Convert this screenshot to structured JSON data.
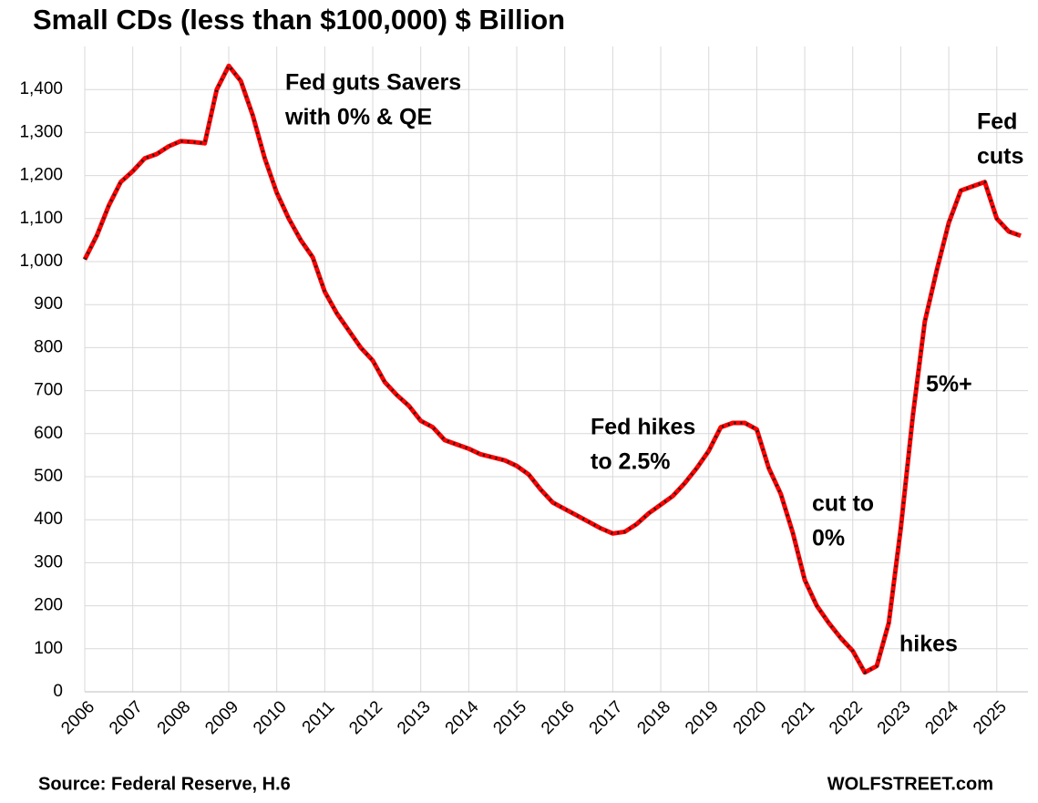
{
  "chart_data": {
    "type": "line",
    "title": "Small CDs (less than $100,000) $ Billion",
    "source": "Source: Federal Reserve, H.6",
    "credit": "WOLFSTREET.com",
    "x": [
      2006,
      2006.25,
      2006.5,
      2006.75,
      2007,
      2007.25,
      2007.5,
      2007.75,
      2008,
      2008.25,
      2008.5,
      2008.75,
      2009,
      2009.25,
      2009.5,
      2009.75,
      2010,
      2010.25,
      2010.5,
      2010.75,
      2011,
      2011.25,
      2011.5,
      2011.75,
      2012,
      2012.25,
      2012.5,
      2012.75,
      2013,
      2013.25,
      2013.5,
      2013.75,
      2014,
      2014.25,
      2014.5,
      2014.75,
      2015,
      2015.25,
      2015.5,
      2015.75,
      2016,
      2016.25,
      2016.5,
      2016.75,
      2017,
      2017.25,
      2017.5,
      2017.75,
      2018,
      2018.25,
      2018.5,
      2018.75,
      2019,
      2019.25,
      2019.5,
      2019.75,
      2020,
      2020.25,
      2020.5,
      2020.75,
      2021,
      2021.25,
      2021.5,
      2021.75,
      2022,
      2022.25,
      2022.5,
      2022.75,
      2023,
      2023.25,
      2023.5,
      2023.75,
      2024,
      2024.25,
      2024.5,
      2024.75,
      2025,
      2025.25,
      2025.5
    ],
    "series": [
      {
        "name": "Small CDs",
        "color": "#ff0000",
        "values": [
          1005,
          1060,
          1130,
          1185,
          1210,
          1240,
          1250,
          1268,
          1280,
          1278,
          1275,
          1400,
          1455,
          1420,
          1340,
          1240,
          1160,
          1100,
          1050,
          1010,
          930,
          880,
          840,
          800,
          770,
          720,
          690,
          665,
          630,
          615,
          585,
          575,
          565,
          552,
          545,
          538,
          525,
          505,
          470,
          440,
          425,
          410,
          395,
          380,
          368,
          372,
          390,
          415,
          435,
          455,
          485,
          520,
          560,
          615,
          625,
          625,
          610,
          520,
          460,
          370,
          260,
          200,
          160,
          125,
          95,
          45,
          60,
          160,
          380,
          640,
          860,
          980,
          1090,
          1165,
          1175,
          1185,
          1100,
          1070,
          1060
        ]
      }
    ],
    "xlim": [
      2006,
      2025.65
    ],
    "xticks": [
      2006,
      2007,
      2008,
      2009,
      2010,
      2011,
      2012,
      2013,
      2014,
      2015,
      2016,
      2017,
      2018,
      2019,
      2020,
      2021,
      2022,
      2023,
      2024,
      2025
    ],
    "ylim": [
      0,
      1500
    ],
    "yticks": [
      0,
      100,
      200,
      300,
      400,
      500,
      600,
      700,
      800,
      900,
      {
        "value": 1000,
        "label": "1,000"
      },
      {
        "value": 1100,
        "label": "1,100"
      },
      {
        "value": 1200,
        "label": "1,200"
      },
      {
        "value": 1300,
        "label": "1,300"
      },
      {
        "value": 1400,
        "label": "1,400"
      }
    ],
    "grid": true,
    "annotations": [
      {
        "lines": [
          "Fed guts Savers",
          "with 0% & QE"
        ]
      },
      {
        "lines": [
          "Fed hikes",
          "to 2.5%"
        ]
      },
      {
        "lines": [
          "cut to",
          "0%"
        ]
      },
      {
        "lines": [
          "hikes"
        ]
      },
      {
        "lines": [
          "5%+"
        ]
      },
      {
        "lines": [
          "Fed",
          "cuts"
        ]
      }
    ]
  }
}
